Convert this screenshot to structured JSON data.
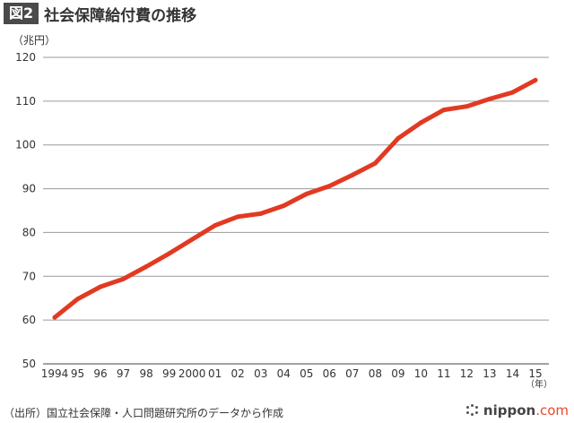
{
  "header": {
    "badge": "図2",
    "title": "社会保障給付費の推移"
  },
  "chart_data": {
    "type": "line",
    "title": "社会保障給付費の推移",
    "ylabel": "（兆円）",
    "xlabel": "",
    "x_unit_label": "（年）",
    "ylim": [
      50,
      120
    ],
    "yticks": [
      50,
      60,
      70,
      80,
      90,
      100,
      110,
      120
    ],
    "grid": true,
    "categories": [
      "1994",
      "95",
      "96",
      "97",
      "98",
      "99",
      "2000",
      "01",
      "02",
      "03",
      "04",
      "05",
      "06",
      "07",
      "08",
      "09",
      "10",
      "11",
      "12",
      "13",
      "14",
      "15"
    ],
    "series": [
      {
        "values": [
          60.6,
          64.8,
          67.6,
          69.4,
          72.2,
          75.2,
          78.4,
          81.6,
          83.6,
          84.3,
          86.1,
          88.8,
          90.6,
          93.1,
          95.8,
          101.5,
          105.1,
          108.0,
          108.8,
          110.5,
          112.0,
          114.8
        ],
        "color": "#e23a22"
      }
    ]
  },
  "source": "（出所）国立社会保障・人口問題研究所のデータから作成",
  "logo": {
    "name": "nippon",
    "domain": ".com"
  }
}
